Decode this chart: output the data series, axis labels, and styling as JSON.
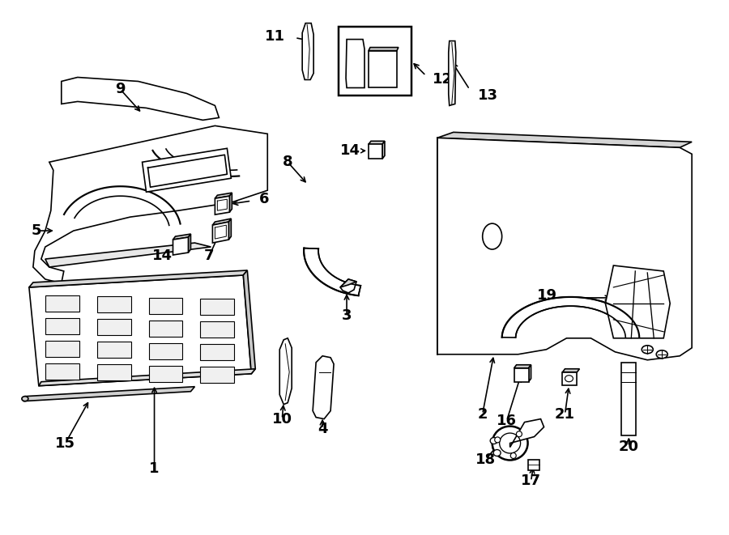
{
  "background": "#ffffff",
  "line_color": "#000000",
  "figsize": [
    9.0,
    6.61
  ],
  "dpi": 100,
  "lw": 1.2,
  "fs": 13
}
